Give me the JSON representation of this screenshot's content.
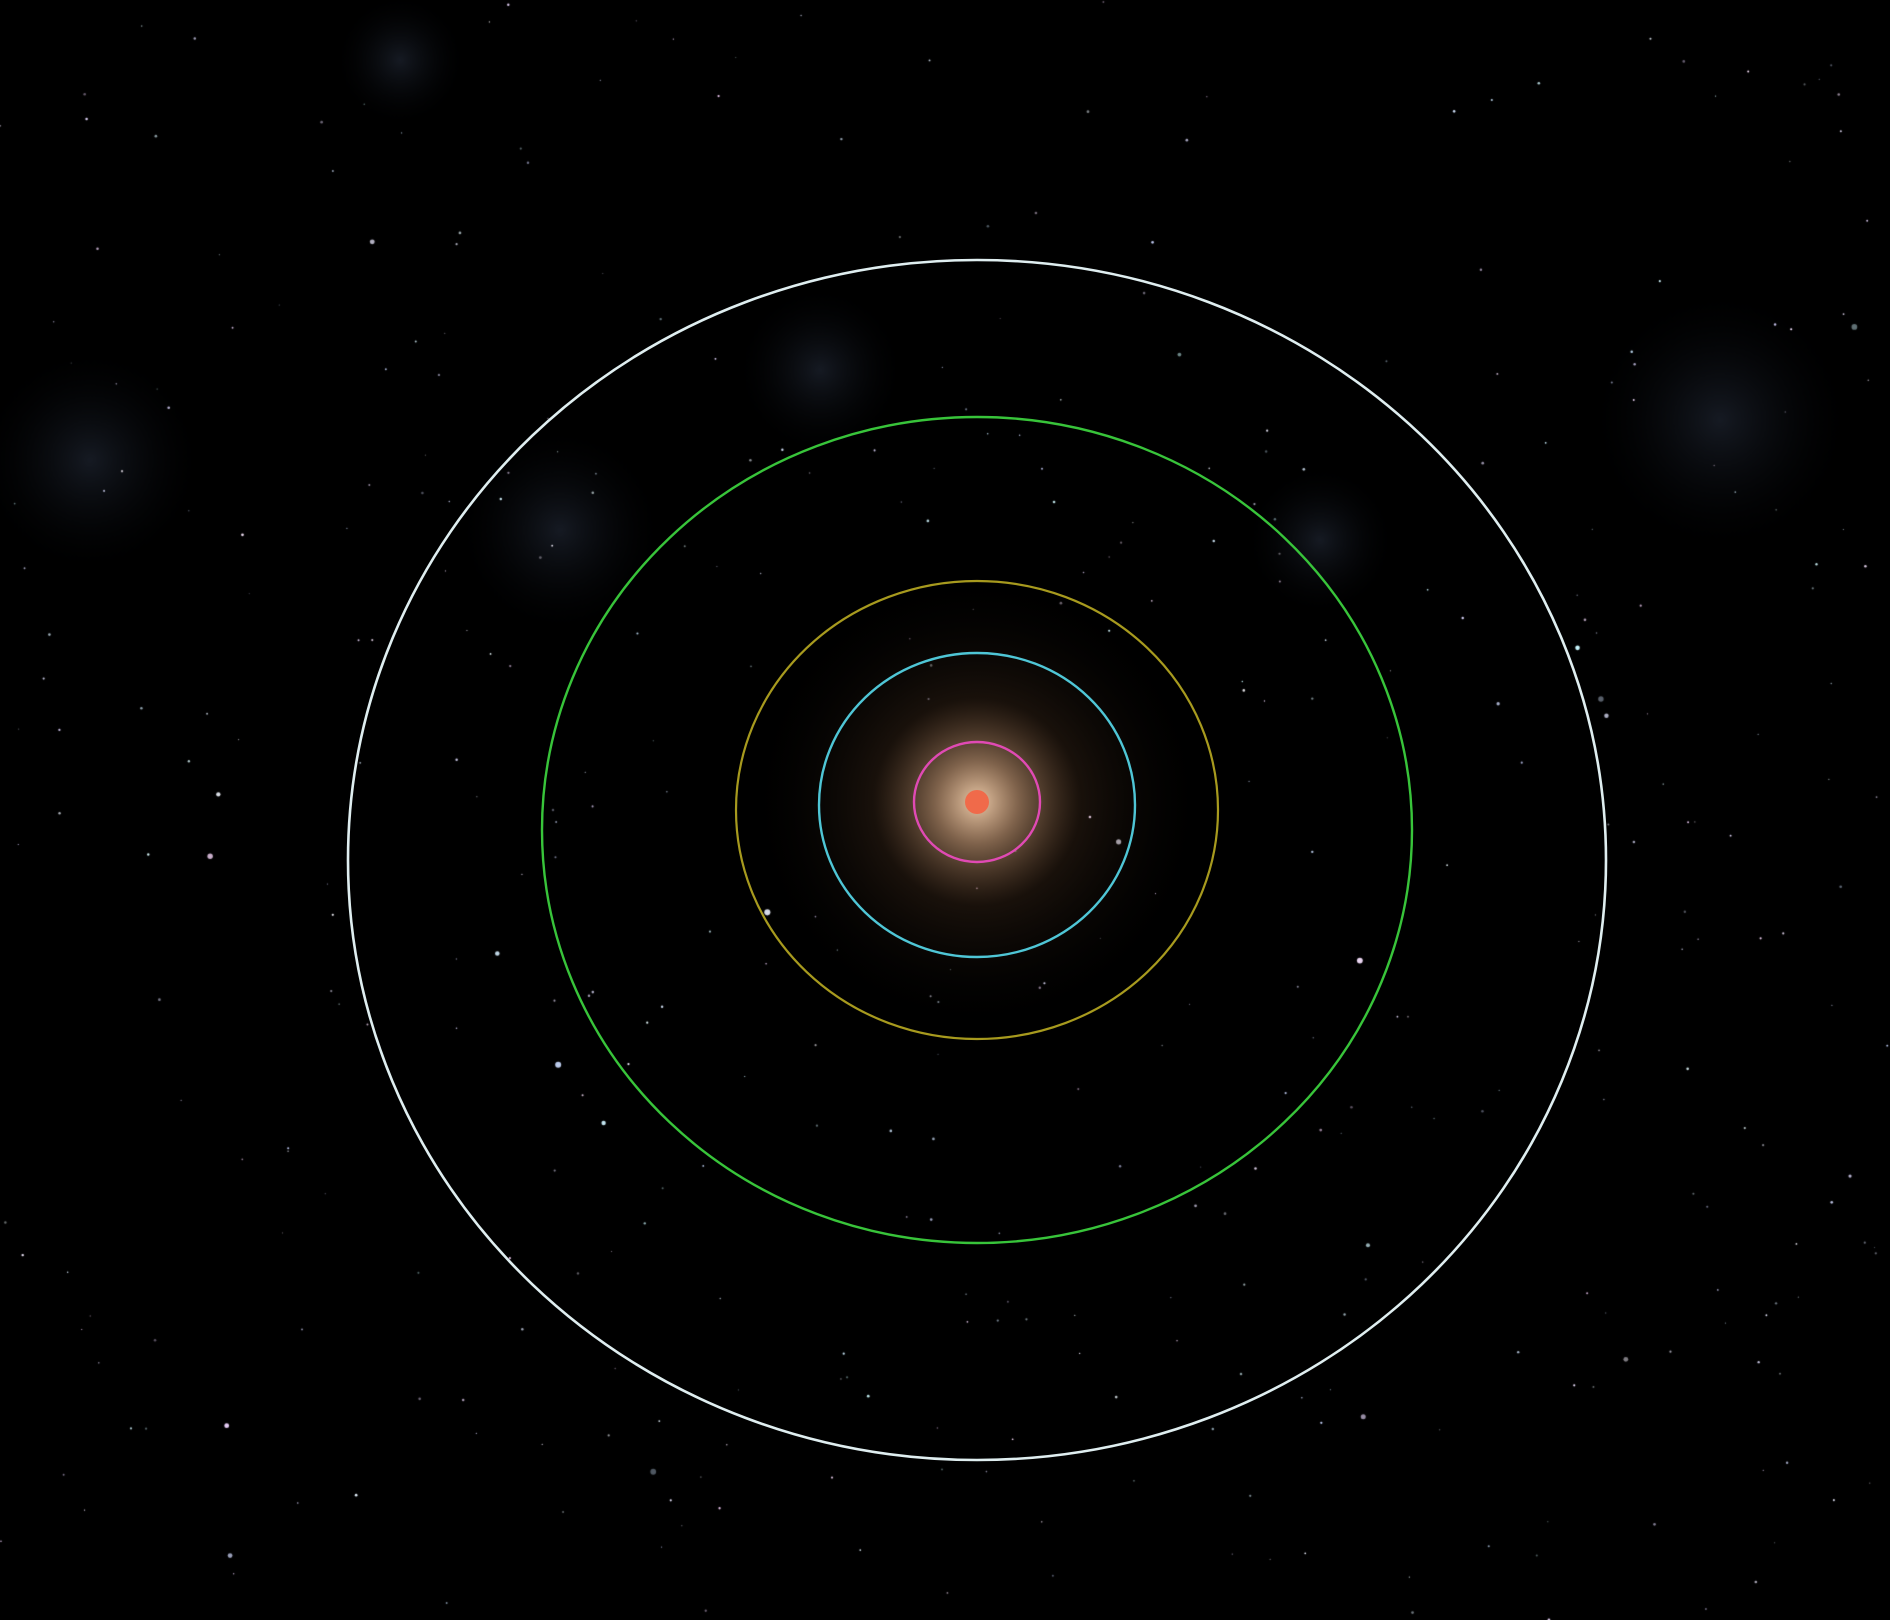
{
  "scene": {
    "background": "#000000",
    "nebula_tint": "#1c2330",
    "star_count": 420,
    "star_seed": 31
  },
  "star": {
    "icon": "red-dwarf-star-icon",
    "color": "#f06a4a",
    "glow_color": "#e8b48a"
  },
  "orbits": [
    {
      "name": "orbit-1",
      "color": "#e04ab4"
    },
    {
      "name": "orbit-2",
      "color": "#4fc6d6"
    },
    {
      "name": "orbit-3",
      "color": "#a79a1e"
    },
    {
      "name": "orbit-4",
      "color": "#38c43a"
    },
    {
      "name": "orbit-5",
      "color": "#dfeef0"
    }
  ]
}
